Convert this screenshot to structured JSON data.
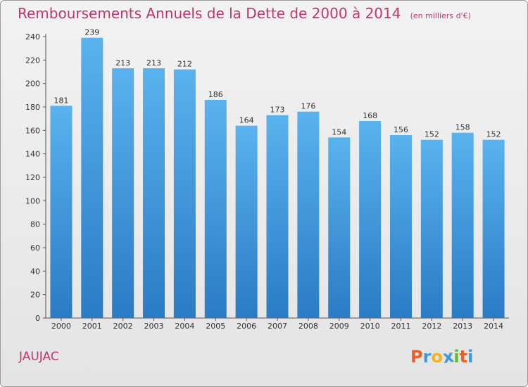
{
  "chart_data": {
    "type": "bar",
    "title": "Remboursements Annuels de la Dette de 2000 à 2014",
    "subtitle": "(en milliers d'€)",
    "xlabel": "",
    "ylabel": "",
    "categories": [
      "2000",
      "2001",
      "2002",
      "2003",
      "2004",
      "2005",
      "2006",
      "2007",
      "2008",
      "2009",
      "2010",
      "2011",
      "2012",
      "2013",
      "2014"
    ],
    "values": [
      181,
      239,
      213,
      213,
      212,
      186,
      164,
      173,
      176,
      154,
      168,
      156,
      152,
      158,
      152
    ],
    "ylim": [
      0,
      240
    ],
    "yticks": [
      0,
      20,
      40,
      60,
      80,
      100,
      120,
      140,
      160,
      180,
      200,
      220,
      240
    ],
    "grid": false,
    "data_labels": true,
    "colors": {
      "bar_light": "#5ab2ee",
      "bar_dark": "#2a7bc4",
      "title": "#c0356e"
    }
  },
  "commune": "JAUJAC",
  "logo": {
    "text": "Proxiti",
    "letters": [
      "P",
      "r",
      "o",
      "x",
      "i",
      "t",
      "i"
    ],
    "colors": [
      "#e8602c",
      "#3f9ad8",
      "#f3b21b",
      "#3f9ad8",
      "#67b82f",
      "#e8602c",
      "#3f9ad8"
    ]
  }
}
